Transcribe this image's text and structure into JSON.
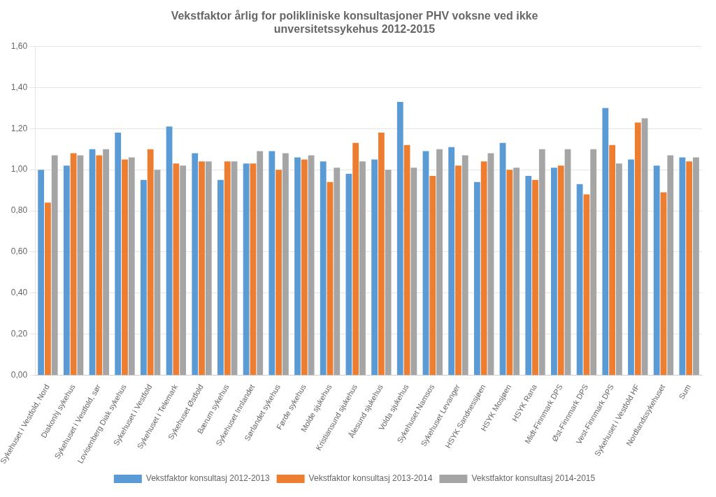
{
  "chart_data": {
    "type": "bar",
    "title": "Vekstfaktor årlig for polikliniske konsultasjoner PHV voksne ved ikke\nunversitetssykehus 2012-2015",
    "categories": [
      "Sykehuset i Vestfold, Nord",
      "Diakonhj sykehus",
      "Sykehuset i Vestfold, sør",
      "Lovisenberg Diak sykehus",
      "Sykehuset i Vestfold",
      "Sykehuset i Telemark",
      "Sykehuset Østfold",
      "Bærum sykehus",
      "Sykehuset Innlandet",
      "Sørlandet sykehus",
      "Førde sykehus",
      "Molde sjukehus",
      "Kristiansund sjukehus",
      "Ålesund sjukehus",
      "Volda sjukehus",
      "Sykehuset Namsos",
      "Sykehuset Levanger",
      "HSYK Sandnessjøen",
      "HSYK Mosjøen",
      "HSYK Rana",
      "Midt-Finnmark DPS",
      "Øst-Finnmark DPS",
      "Vest-Finnmark DPS",
      "Sykehuset i Vestfold HF",
      "Nordlandssykehuset",
      "Sum"
    ],
    "series": [
      {
        "name": "Vekstfaktor konsultasj 2012-2013",
        "color": "#5B9BD5",
        "values": [
          1.0,
          1.02,
          1.1,
          1.18,
          0.95,
          1.21,
          1.08,
          0.95,
          1.03,
          1.09,
          1.06,
          1.04,
          0.98,
          1.05,
          1.33,
          1.09,
          1.11,
          0.94,
          1.13,
          0.97,
          1.01,
          0.93,
          1.3,
          1.05,
          1.02,
          1.06
        ]
      },
      {
        "name": "Vekstfaktor konsultasj 2013-2014",
        "color": "#ED7D31",
        "values": [
          0.84,
          1.08,
          1.07,
          1.05,
          1.1,
          1.03,
          1.04,
          1.04,
          1.03,
          1.0,
          1.05,
          0.94,
          1.13,
          1.18,
          1.12,
          0.97,
          1.02,
          1.04,
          1.0,
          0.95,
          1.02,
          0.88,
          1.12,
          1.23,
          0.89,
          1.04
        ]
      },
      {
        "name": "Vekstfaktor konsultasj 2014-2015",
        "color": "#A5A5A5",
        "values": [
          1.07,
          1.07,
          1.1,
          1.06,
          1.0,
          1.02,
          1.04,
          1.04,
          1.09,
          1.08,
          1.07,
          1.01,
          1.04,
          1.0,
          1.01,
          1.1,
          1.07,
          1.08,
          1.01,
          1.1,
          1.1,
          1.1,
          1.03,
          1.25,
          1.07,
          1.06
        ]
      }
    ],
    "ylim": [
      0,
      1.6
    ],
    "yticks": [
      {
        "value": 0.0,
        "label": "0,00"
      },
      {
        "value": 0.2,
        "label": "0,20"
      },
      {
        "value": 0.4,
        "label": "0,40"
      },
      {
        "value": 0.6,
        "label": "0,60"
      },
      {
        "value": 0.8,
        "label": "0,80"
      },
      {
        "value": 1.0,
        "label": "1,00"
      },
      {
        "value": 1.2,
        "label": "1,20"
      },
      {
        "value": 1.4,
        "label": "1,40"
      },
      {
        "value": 1.6,
        "label": "1,60"
      }
    ],
    "grid": true,
    "legend": "bottom"
  }
}
